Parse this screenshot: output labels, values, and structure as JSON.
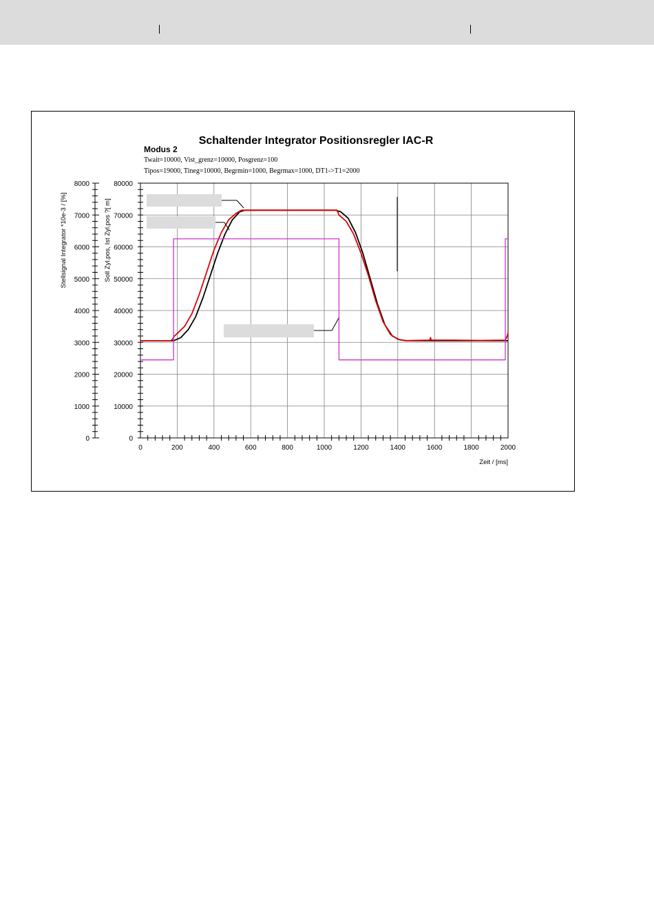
{
  "header": {},
  "chart_data": {
    "type": "line",
    "title": "Schaltender Integrator Positionsregler IAC-R",
    "subtitle": "Modus 2",
    "params": [
      "Twait=10000, Vist_grenz=10000, Posgrenz=100",
      "Tipos=19000, Tineg=10000, Begrmin=1000, Begrmax=1000, DT1->T1=2000"
    ],
    "xlabel": "Zeit / [ms]",
    "ylabel_left": "Stellsignal Integrator *10e-3 / [%]",
    "ylabel_right": "Soll Zyl.pos, Ist Zyl.pos ?[  m]",
    "xlim": [
      0,
      2000
    ],
    "ylim_left": [
      0,
      8000
    ],
    "ylim_right": [
      0,
      80000
    ],
    "x_ticks": [
      "0",
      "200",
      "400",
      "600",
      "800",
      "1000",
      "1200",
      "1400",
      "1600",
      "1800",
      "2000"
    ],
    "y_ticks_left": [
      "0",
      "1000",
      "2000",
      "3000",
      "4000",
      "5000",
      "6000",
      "7000",
      "8000"
    ],
    "y_ticks_right": [
      "0",
      "10000",
      "20000",
      "30000",
      "40000",
      "50000",
      "60000",
      "70000",
      "80000"
    ],
    "grid": true,
    "colors": {
      "soll": "#000000",
      "ist": "#e00000",
      "stellsignal": "#cc33cc"
    },
    "series": [
      {
        "axis": "right",
        "color": "#000000",
        "x": [
          0,
          180,
          220,
          260,
          300,
          340,
          380,
          420,
          460,
          500,
          540,
          570,
          1060,
          1090,
          1130,
          1170,
          1210,
          1250,
          1290,
          1330,
          1370,
          1410,
          1450,
          1470,
          2000
        ],
        "y": [
          30500,
          30500,
          31500,
          34000,
          38000,
          44000,
          51000,
          58000,
          64000,
          68500,
          71000,
          71500,
          71500,
          71000,
          69000,
          64500,
          58000,
          50000,
          42000,
          35500,
          32000,
          30800,
          30500,
          30500,
          30500
        ]
      },
      {
        "axis": "right",
        "color": "#e00000",
        "x": [
          0,
          165,
          175,
          185,
          200,
          240,
          280,
          320,
          360,
          400,
          440,
          480,
          520,
          550,
          575,
          700,
          900,
          1070,
          1080,
          1120,
          1160,
          1200,
          1240,
          1280,
          1320,
          1360,
          1400,
          1440,
          1480,
          1575,
          1578,
          1582,
          1700,
          1850,
          1985,
          1995,
          2000
        ],
        "y": [
          30500,
          30500,
          31000,
          32000,
          32800,
          35000,
          39000,
          45000,
          52000,
          59000,
          64500,
          68500,
          70500,
          71500,
          71500,
          71500,
          71500,
          71500,
          70000,
          68000,
          64000,
          58000,
          51000,
          43000,
          36500,
          32500,
          31000,
          30500,
          30600,
          30700,
          31500,
          30700,
          30700,
          30600,
          30700,
          32000,
          33000
        ]
      },
      {
        "axis": "left",
        "color": "#cc33cc",
        "x": [
          0,
          180,
          180,
          1080,
          1080,
          1985,
          1985,
          2000
        ],
        "y": [
          2450,
          2450,
          6250,
          6250,
          2450,
          2450,
          6250,
          6250
        ]
      }
    ]
  }
}
